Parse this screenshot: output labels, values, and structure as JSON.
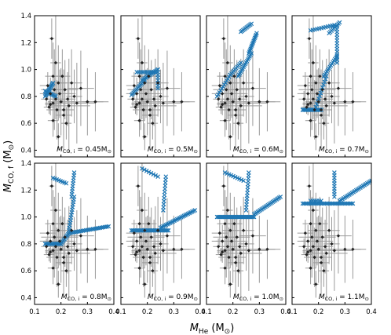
{
  "figure": {
    "xlabel": "M",
    "xlabel_sub": "He",
    "xlabel_unit": "(M",
    "xlabel_unit_close": ")",
    "ylabel": "M",
    "ylabel_sub": "CO, f",
    "ylabel_unit": "(M",
    "ylabel_unit_close": ")",
    "sun_symbol": "⊙"
  },
  "chart_data": {
    "type": "scatter",
    "layout": "2x4 grid of panels",
    "xlabel": "M_He (M⊙)",
    "ylabel": "M_CO,f (M⊙)",
    "xlim": [
      0.1,
      0.4
    ],
    "ylim": [
      0.35,
      1.4
    ],
    "xticks": [
      0.1,
      0.2,
      0.3,
      0.4
    ],
    "xtick_labels": [
      "0.1",
      "0.2",
      "0.3",
      "0.4"
    ],
    "yticks_top": [
      0.4,
      0.6,
      0.8,
      1.0,
      1.2,
      1.4
    ],
    "yticks_top_labels": [
      "0.4",
      "0.6",
      "0.8",
      "1.0",
      "1.2",
      "1.4"
    ],
    "yticks_bottom": [
      0.4,
      0.6,
      0.8,
      1.0,
      1.2,
      1.4
    ],
    "yticks_bottom_labels": [
      "0.4",
      "0.6",
      "0.8",
      "1.0",
      "1.2",
      "1.4"
    ],
    "colors": {
      "model": "#1f77b4",
      "observed": "#222222",
      "errorbar": "#9a9a9a"
    },
    "panels": [
      {
        "label_main": "M",
        "label_sub": "CO, i",
        "label_val": " = 0.45M",
        "sun": "⊙",
        "mci": 0.45
      },
      {
        "label_main": "M",
        "label_sub": "CO, i",
        "label_val": " = 0.5M",
        "sun": "⊙",
        "mci": 0.5
      },
      {
        "label_main": "M",
        "label_sub": "CO, i",
        "label_val": " = 0.6M",
        "sun": "⊙",
        "mci": 0.6
      },
      {
        "label_main": "M",
        "label_sub": "CO, i",
        "label_val": " = 0.7M",
        "sun": "⊙",
        "mci": 0.7
      },
      {
        "label_main": "M",
        "label_sub": "CO, i",
        "label_val": " = 0.8M",
        "sun": "⊙",
        "mci": 0.8
      },
      {
        "label_main": "M",
        "label_sub": "CO, i",
        "label_val": " = 0.9M",
        "sun": "⊙",
        "mci": 0.9
      },
      {
        "label_main": "M",
        "label_sub": "CO, i",
        "label_val": " = 1.0M",
        "sun": "⊙",
        "mci": 1.0
      },
      {
        "label_main": "M",
        "label_sub": "CO, i",
        "label_val": " = 1.1M",
        "sun": "⊙",
        "mci": 1.1
      }
    ],
    "observed": [
      {
        "x": 0.145,
        "y": 0.78,
        "xerr": 0.02,
        "yerr": 0.06
      },
      {
        "x": 0.15,
        "y": 0.88,
        "xerr": 0.03,
        "yerr": 0.1
      },
      {
        "x": 0.155,
        "y": 0.72,
        "xerr": 0.02,
        "yerr": 0.05
      },
      {
        "x": 0.16,
        "y": 0.82,
        "xerr": 0.04,
        "yerr": 0.12
      },
      {
        "x": 0.165,
        "y": 1.23,
        "xerr": 0.01,
        "yerr": 0.15
      },
      {
        "x": 0.17,
        "y": 0.75,
        "xerr": 0.03,
        "yerr": 0.2
      },
      {
        "x": 0.17,
        "y": 0.95,
        "xerr": 0.03,
        "yerr": 0.25
      },
      {
        "x": 0.175,
        "y": 0.85,
        "xerr": 0.05,
        "yerr": 0.3
      },
      {
        "x": 0.18,
        "y": 0.78,
        "xerr": 0.02,
        "yerr": 0.15
      },
      {
        "x": 0.18,
        "y": 1.05,
        "xerr": 0.02,
        "yerr": 0.35
      },
      {
        "x": 0.185,
        "y": 0.7,
        "xerr": 0.04,
        "yerr": 0.22
      },
      {
        "x": 0.19,
        "y": 0.9,
        "xerr": 0.03,
        "yerr": 0.28
      },
      {
        "x": 0.19,
        "y": 0.5,
        "xerr": 0.01,
        "yerr": 0.1
      },
      {
        "x": 0.195,
        "y": 0.82,
        "xerr": 0.06,
        "yerr": 0.18
      },
      {
        "x": 0.2,
        "y": 0.76,
        "xerr": 0.05,
        "yerr": 0.25
      },
      {
        "x": 0.205,
        "y": 0.95,
        "xerr": 0.03,
        "yerr": 0.2
      },
      {
        "x": 0.21,
        "y": 0.7,
        "xerr": 0.04,
        "yerr": 0.3
      },
      {
        "x": 0.215,
        "y": 0.85,
        "xerr": 0.05,
        "yerr": 0.22
      },
      {
        "x": 0.22,
        "y": 0.6,
        "xerr": 0.02,
        "yerr": 0.12
      },
      {
        "x": 0.225,
        "y": 0.78,
        "xerr": 0.03,
        "yerr": 0.2
      },
      {
        "x": 0.23,
        "y": 0.73,
        "xerr": 0.08,
        "yerr": 0.35
      },
      {
        "x": 0.24,
        "y": 0.9,
        "xerr": 0.04,
        "yerr": 0.25
      },
      {
        "x": 0.25,
        "y": 0.8,
        "xerr": 0.03,
        "yerr": 0.2
      },
      {
        "x": 0.26,
        "y": 0.75,
        "xerr": 0.07,
        "yerr": 0.3
      },
      {
        "x": 0.275,
        "y": 0.86,
        "xerr": 0.05,
        "yerr": 0.28
      },
      {
        "x": 0.3,
        "y": 0.76,
        "xerr": 0.06,
        "yerr": 0.25
      },
      {
        "x": 0.33,
        "y": 0.76,
        "xerr": 0.05,
        "yerr": 0.22
      },
      {
        "x": 0.21,
        "y": 0.66,
        "xerr": 0.03,
        "yerr": 0.15
      },
      {
        "x": 0.17,
        "y": 0.62,
        "xerr": 0.02,
        "yerr": 0.12
      },
      {
        "x": 0.16,
        "y": 0.74,
        "xerr": 0.02,
        "yerr": 0.08
      }
    ],
    "model_tracks": [
      {
        "panel": 0,
        "segments": [
          {
            "from": [
              0.14,
              0.8
            ],
            "to": [
              0.17,
              0.9
            ],
            "n": 14
          },
          {
            "from": [
              0.14,
              0.84
            ],
            "to": [
              0.18,
              0.8
            ],
            "n": 10
          }
        ]
      },
      {
        "panel": 1,
        "segments": [
          {
            "from": [
              0.14,
              0.81
            ],
            "to": [
              0.19,
              0.92
            ],
            "n": 14
          },
          {
            "from": [
              0.18,
              0.92
            ],
            "to": [
              0.24,
              1.0
            ],
            "n": 14
          },
          {
            "from": [
              0.24,
              0.86
            ],
            "to": [
              0.24,
              1.0
            ],
            "n": 8
          },
          {
            "from": [
              0.16,
              0.98
            ],
            "to": [
              0.23,
              0.98
            ],
            "n": 10
          }
        ]
      },
      {
        "panel": 2,
        "segments": [
          {
            "from": [
              0.14,
              0.8
            ],
            "to": [
              0.19,
              0.96
            ],
            "n": 12
          },
          {
            "from": [
              0.19,
              0.96
            ],
            "to": [
              0.23,
              1.05
            ],
            "n": 10
          },
          {
            "from": [
              0.22,
              0.95
            ],
            "to": [
              0.27,
              1.12
            ],
            "n": 16
          },
          {
            "from": [
              0.26,
              1.12
            ],
            "to": [
              0.29,
              1.27
            ],
            "n": 14
          },
          {
            "from": [
              0.23,
              1.28
            ],
            "to": [
              0.27,
              1.34
            ],
            "n": 10
          }
        ]
      },
      {
        "panel": 3,
        "segments": [
          {
            "from": [
              0.14,
              0.7
            ],
            "to": [
              0.21,
              0.7
            ],
            "n": 18
          },
          {
            "from": [
              0.19,
              0.72
            ],
            "to": [
              0.23,
              0.95
            ],
            "n": 12
          },
          {
            "from": [
              0.22,
              0.95
            ],
            "to": [
              0.27,
              1.1
            ],
            "n": 14
          },
          {
            "from": [
              0.27,
              1.05
            ],
            "to": [
              0.27,
              1.32
            ],
            "n": 14
          },
          {
            "from": [
              0.17,
              1.29
            ],
            "to": [
              0.26,
              1.33
            ],
            "n": 12
          },
          {
            "from": [
              0.24,
              1.27
            ],
            "to": [
              0.28,
              1.35
            ],
            "n": 10
          }
        ]
      },
      {
        "panel": 4,
        "segments": [
          {
            "from": [
              0.14,
              0.8
            ],
            "to": [
              0.2,
              0.8
            ],
            "n": 14
          },
          {
            "from": [
              0.2,
              0.8
            ],
            "to": [
              0.23,
              0.88
            ],
            "n": 10
          },
          {
            "from": [
              0.23,
              0.88
            ],
            "to": [
              0.38,
              0.93
            ],
            "n": 24
          },
          {
            "from": [
              0.23,
              0.9
            ],
            "to": [
              0.25,
              1.15
            ],
            "n": 14
          },
          {
            "from": [
              0.24,
              1.15
            ],
            "to": [
              0.25,
              1.33
            ],
            "n": 10
          },
          {
            "from": [
              0.17,
              1.29
            ],
            "to": [
              0.22,
              1.25
            ],
            "n": 8
          }
        ]
      },
      {
        "panel": 5,
        "segments": [
          {
            "from": [
              0.14,
              0.9
            ],
            "to": [
              0.28,
              0.9
            ],
            "n": 28
          },
          {
            "from": [
              0.25,
              0.92
            ],
            "to": [
              0.38,
              1.05
            ],
            "n": 26
          },
          {
            "from": [
              0.26,
              1.05
            ],
            "to": [
              0.27,
              1.3
            ],
            "n": 12
          },
          {
            "from": [
              0.18,
              1.36
            ],
            "to": [
              0.24,
              1.3
            ],
            "n": 8
          }
        ]
      },
      {
        "panel": 6,
        "segments": [
          {
            "from": [
              0.14,
              1.0
            ],
            "to": [
              0.28,
              1.0
            ],
            "n": 30
          },
          {
            "from": [
              0.28,
              1.02
            ],
            "to": [
              0.38,
              1.15
            ],
            "n": 22
          },
          {
            "from": [
              0.25,
              1.05
            ],
            "to": [
              0.26,
              1.33
            ],
            "n": 14
          },
          {
            "from": [
              0.17,
              1.33
            ],
            "to": [
              0.24,
              1.27
            ],
            "n": 10
          }
        ]
      },
      {
        "panel": 7,
        "segments": [
          {
            "from": [
              0.14,
              1.1
            ],
            "to": [
              0.33,
              1.1
            ],
            "n": 34
          },
          {
            "from": [
              0.28,
              1.12
            ],
            "to": [
              0.4,
              1.27
            ],
            "n": 24
          },
          {
            "from": [
              0.26,
              1.15
            ],
            "to": [
              0.26,
              1.33
            ],
            "n": 10
          },
          {
            "from": [
              0.17,
              1.12
            ],
            "to": [
              0.21,
              1.12
            ],
            "n": 6
          }
        ]
      }
    ]
  }
}
